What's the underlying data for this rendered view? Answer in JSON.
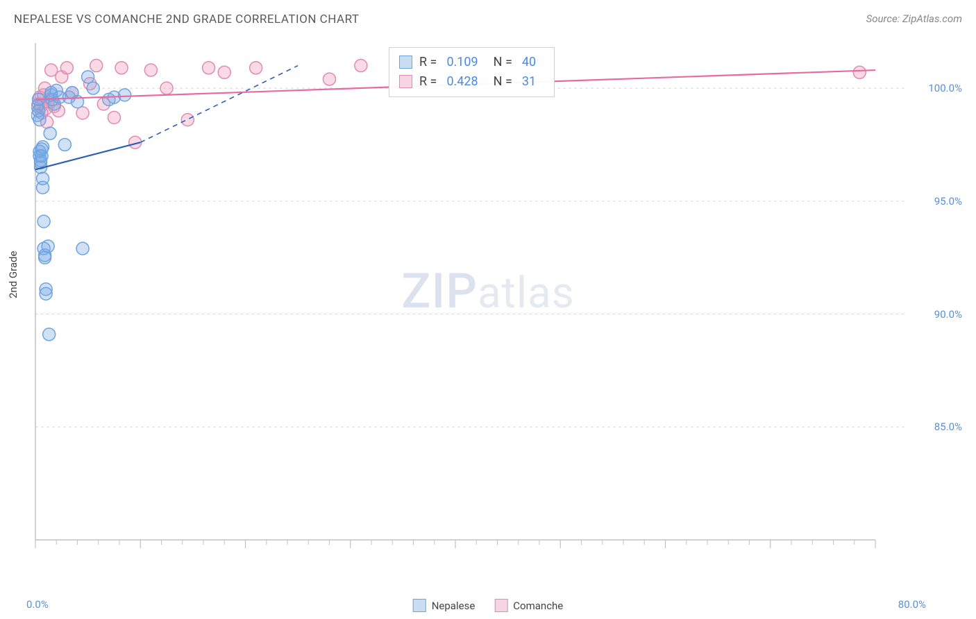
{
  "title": "NEPALESE VS COMANCHE 2ND GRADE CORRELATION CHART",
  "source": "Source: ZipAtlas.com",
  "watermark_main": "ZIP",
  "watermark_sub": "atlas",
  "chart": {
    "type": "scatter",
    "ylabel": "2nd Grade",
    "xlim": [
      0,
      80
    ],
    "ylim": [
      80,
      102
    ],
    "xtick_major": [
      0,
      10,
      20,
      30,
      40,
      50,
      60,
      70,
      80
    ],
    "xtick_minor_count": 4,
    "ytick_labels": [
      {
        "v": 100,
        "label": "100.0%"
      },
      {
        "v": 95,
        "label": "95.0%"
      },
      {
        "v": 90,
        "label": "90.0%"
      },
      {
        "v": 85,
        "label": "85.0%"
      }
    ],
    "x_start_label": "0.0%",
    "x_end_label": "80.0%",
    "grid_color": "#d8d8d8",
    "axis_color": "#c2c2c2",
    "background_color": "#ffffff",
    "marker_radius": 9,
    "marker_stroke_w": 1.5,
    "line_width": 2.2,
    "series": [
      {
        "name": "Nepalese",
        "fill": "rgba(120,170,230,0.35)",
        "stroke": "#6da3e0",
        "line_color": "#2b5fb5",
        "swatch_fill": "#c9ddf3",
        "swatch_border": "#6da3e0",
        "R": "0.109",
        "N": "40",
        "trend_solid": {
          "x1": 0,
          "y1": 96.4,
          "x2": 10,
          "y2": 97.6
        },
        "trend_dash": {
          "x1": 10,
          "y1": 97.6,
          "x2": 25,
          "y2": 101.0
        },
        "points": [
          [
            0.2,
            98.8
          ],
          [
            0.2,
            99.2
          ],
          [
            0.3,
            99.5
          ],
          [
            0.3,
            99.0
          ],
          [
            0.4,
            98.6
          ],
          [
            0.4,
            97.2
          ],
          [
            0.4,
            97.0
          ],
          [
            0.5,
            96.7
          ],
          [
            0.5,
            96.5
          ],
          [
            0.5,
            96.8
          ],
          [
            0.6,
            97.3
          ],
          [
            0.6,
            97.0
          ],
          [
            0.7,
            97.4
          ],
          [
            0.7,
            95.6
          ],
          [
            0.7,
            96.0
          ],
          [
            0.8,
            94.1
          ],
          [
            0.8,
            92.9
          ],
          [
            0.9,
            92.6
          ],
          [
            0.9,
            92.5
          ],
          [
            1.0,
            91.1
          ],
          [
            1.0,
            90.9
          ],
          [
            1.2,
            93.0
          ],
          [
            1.3,
            89.1
          ],
          [
            1.4,
            98.0
          ],
          [
            1.5,
            99.7
          ],
          [
            1.5,
            99.8
          ],
          [
            1.6,
            99.5
          ],
          [
            1.8,
            99.3
          ],
          [
            2.0,
            99.9
          ],
          [
            2.3,
            99.6
          ],
          [
            2.8,
            97.5
          ],
          [
            3.2,
            99.6
          ],
          [
            3.5,
            99.8
          ],
          [
            4.0,
            99.4
          ],
          [
            4.5,
            92.9
          ],
          [
            5.0,
            100.5
          ],
          [
            5.5,
            100.0
          ],
          [
            7.0,
            99.5
          ],
          [
            7.5,
            99.6
          ],
          [
            8.5,
            99.7
          ]
        ]
      },
      {
        "name": "Comanche",
        "fill": "rgba(240,150,180,0.35)",
        "stroke": "#e08bb0",
        "line_color": "#e76aa0",
        "swatch_fill": "#f7d4e2",
        "swatch_border": "#e08bb0",
        "R": "0.428",
        "N": "31",
        "trend_solid": {
          "x1": 0,
          "y1": 99.5,
          "x2": 80,
          "y2": 100.8
        },
        "trend_dash": null,
        "points": [
          [
            0.3,
            99.3
          ],
          [
            0.4,
            99.6
          ],
          [
            0.5,
            99.2
          ],
          [
            0.6,
            98.9
          ],
          [
            0.8,
            99.7
          ],
          [
            0.9,
            100.0
          ],
          [
            1.0,
            99.1
          ],
          [
            1.1,
            98.5
          ],
          [
            1.2,
            99.4
          ],
          [
            1.5,
            100.8
          ],
          [
            1.8,
            99.2
          ],
          [
            2.2,
            99.0
          ],
          [
            2.5,
            100.5
          ],
          [
            3.0,
            100.9
          ],
          [
            3.5,
            99.8
          ],
          [
            4.5,
            98.9
          ],
          [
            5.2,
            100.2
          ],
          [
            5.8,
            101.0
          ],
          [
            6.5,
            99.3
          ],
          [
            7.5,
            98.7
          ],
          [
            8.2,
            100.9
          ],
          [
            9.5,
            97.6
          ],
          [
            11.0,
            100.8
          ],
          [
            12.5,
            100.0
          ],
          [
            14.5,
            98.6
          ],
          [
            16.5,
            100.9
          ],
          [
            18.0,
            100.7
          ],
          [
            21.0,
            100.9
          ],
          [
            28.0,
            100.4
          ],
          [
            31.0,
            101.0
          ],
          [
            78.5,
            100.7
          ]
        ]
      }
    ]
  },
  "legend_labels": {
    "R": "R =",
    "N": "N ="
  }
}
